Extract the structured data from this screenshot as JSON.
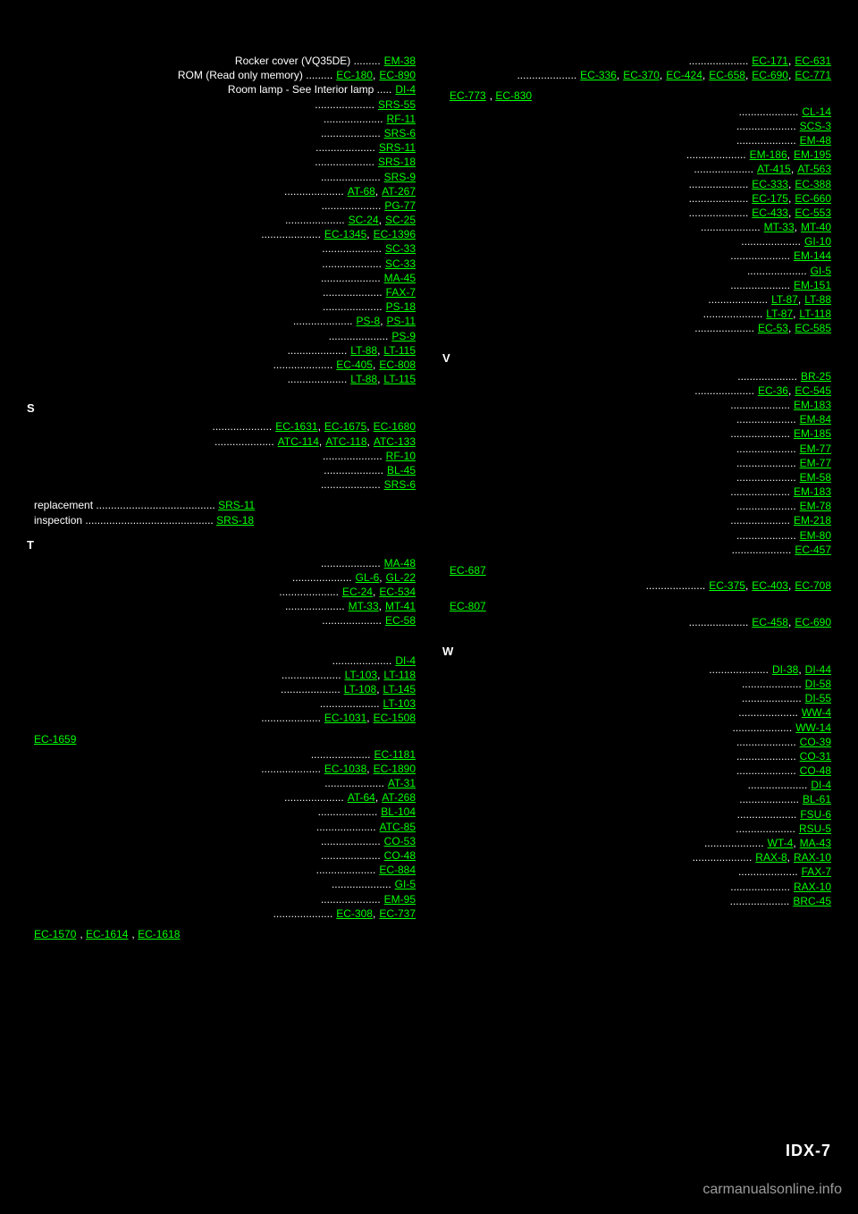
{
  "left": {
    "heading1": "S",
    "sub1_label": "replacement",
    "sub1_links": [
      "SRS-11"
    ],
    "sub2_label": "inspection",
    "sub2_links": [
      "SRS-18"
    ],
    "entries_top": [
      {
        "label": "Rocker cover (VQ35DE)",
        "links": [
          "EM-38"
        ]
      },
      {
        "label": "ROM (Read only memory)",
        "links": [
          "EC-180",
          "EC-890"
        ]
      },
      {
        "label": "Room lamp - See Interior lamp",
        "links": [
          "DI-4"
        ]
      },
      {
        "label": "",
        "links": [
          "SRS-55"
        ]
      },
      {
        "label": "",
        "links": [
          "RF-11"
        ]
      },
      {
        "label": "",
        "links": [
          "SRS-6"
        ]
      },
      {
        "label": "",
        "links": [
          "SRS-11"
        ]
      },
      {
        "label": "",
        "links": [
          "SRS-18"
        ]
      },
      {
        "label": "",
        "links": [
          "SRS-9"
        ]
      },
      {
        "label": "",
        "links": [
          "AT-68",
          "AT-267"
        ]
      },
      {
        "label": "",
        "links": [
          "PG-77"
        ]
      },
      {
        "label": "",
        "links": [
          "SC-24",
          "SC-25"
        ]
      },
      {
        "label": "",
        "links": [
          "EC-1345",
          "EC-1396"
        ]
      },
      {
        "label": "",
        "links": [
          "SC-33"
        ]
      },
      {
        "label": "",
        "links": [
          "SC-33"
        ]
      },
      {
        "label": "",
        "links": [
          "MA-45"
        ]
      },
      {
        "label": "",
        "links": [
          "FAX-7"
        ]
      },
      {
        "label": "",
        "links": [
          "PS-18"
        ]
      },
      {
        "label": "",
        "links": [
          "PS-8",
          "PS-11"
        ]
      },
      {
        "label": "",
        "links": [
          "PS-9"
        ]
      },
      {
        "label": "",
        "links": [
          "LT-88",
          "LT-115"
        ]
      },
      {
        "label": "",
        "links": [
          "EC-405",
          "EC-808"
        ]
      },
      {
        "label": "",
        "links": [
          "LT-88",
          "LT-115"
        ]
      }
    ],
    "sub3_links": [
      "EC-1570",
      "EC-1614",
      "EC-1618"
    ],
    "entries_mid": [
      {
        "label": "",
        "links": [
          "EC-1631",
          "EC-1675",
          "EC-1680"
        ]
      },
      {
        "label": "",
        "links": [
          "ATC-114",
          "ATC-118",
          "ATC-133"
        ]
      },
      {
        "label": "",
        "links": [
          "RF-10"
        ]
      },
      {
        "label": "",
        "links": [
          "BL-45"
        ]
      },
      {
        "label": "",
        "links": [
          "SRS-6"
        ]
      }
    ],
    "entries_t": [
      {
        "label": "",
        "links": [
          "MA-48"
        ]
      },
      {
        "label": "",
        "links": [
          "GL-6",
          "GL-22"
        ]
      },
      {
        "label": "",
        "links": [
          "EC-24",
          "EC-534"
        ]
      },
      {
        "label": "",
        "links": [
          "MT-33",
          "MT-41"
        ]
      },
      {
        "label": "",
        "links": [
          "EC-58"
        ]
      }
    ],
    "heading2": "T",
    "entries_bottom": [
      {
        "label": "",
        "links": [
          "DI-4"
        ]
      },
      {
        "label": "",
        "links": [
          "LT-103",
          "LT-118"
        ]
      },
      {
        "label": "",
        "links": [
          "LT-108",
          "LT-145"
        ]
      },
      {
        "label": "",
        "links": [
          "LT-103"
        ]
      },
      {
        "label": "",
        "links": [
          "EC-1031",
          "EC-1508"
        ]
      }
    ],
    "sub4_links": [
      "EC-1659"
    ],
    "entries_end": [
      {
        "label": "",
        "links": [
          "EC-1181"
        ]
      },
      {
        "label": "",
        "links": [
          "EC-1038",
          "EC-1890"
        ]
      },
      {
        "label": "",
        "links": [
          "AT-31"
        ]
      },
      {
        "label": "",
        "links": [
          "AT-64",
          "AT-268"
        ]
      },
      {
        "label": "",
        "links": [
          "BL-104"
        ]
      },
      {
        "label": "",
        "links": [
          "ATC-85"
        ]
      },
      {
        "label": "",
        "links": [
          "CO-53"
        ]
      },
      {
        "label": "",
        "links": [
          "CO-48"
        ]
      },
      {
        "label": "",
        "links": [
          "EC-884"
        ]
      },
      {
        "label": "",
        "links": [
          "GI-5"
        ]
      },
      {
        "label": "",
        "links": [
          "EM-95"
        ]
      },
      {
        "label": "",
        "links": [
          "EC-308",
          "EC-737"
        ]
      }
    ]
  },
  "right": {
    "entries_top": [
      {
        "label": "",
        "links": [
          "EC-171",
          "EC-631"
        ]
      },
      {
        "label": "",
        "links": [
          "EC-336",
          "EC-370",
          "EC-424",
          "EC-658",
          "EC-690",
          "EC-771"
        ]
      }
    ],
    "sub_links": [
      "EC-773",
      "EC-830"
    ],
    "entries_mid": [
      {
        "label": "",
        "links": [
          "CL-14"
        ]
      },
      {
        "label": "",
        "links": [
          "SCS-3"
        ]
      },
      {
        "label": "",
        "links": [
          "EM-48"
        ]
      },
      {
        "label": "",
        "links": [
          "EM-186",
          "EM-195"
        ]
      },
      {
        "label": "",
        "links": [
          "AT-415",
          "AT-563"
        ]
      },
      {
        "label": "",
        "links": [
          "EC-333",
          "EC-388"
        ]
      },
      {
        "label": "",
        "links": [
          "EC-175",
          "EC-660"
        ]
      },
      {
        "label": "",
        "links": [
          "EC-433",
          "EC-553"
        ]
      },
      {
        "label": "",
        "links": [
          "MT-33",
          "MT-40"
        ]
      },
      {
        "label": "",
        "links": [
          "GI-10"
        ]
      },
      {
        "label": "",
        "links": [
          "EM-144"
        ]
      },
      {
        "label": "",
        "links": [
          "GI-5"
        ]
      },
      {
        "label": "",
        "links": [
          "EM-151"
        ]
      },
      {
        "label": "",
        "links": [
          "LT-87",
          "LT-88"
        ]
      },
      {
        "label": "",
        "links": [
          "LT-87",
          "LT-118"
        ]
      },
      {
        "label": "",
        "links": [
          "EC-53",
          "EC-585"
        ]
      }
    ],
    "heading1": "V",
    "entries_v": [
      {
        "label": "",
        "links": [
          "BR-25"
        ]
      },
      {
        "label": "",
        "links": [
          "EC-36",
          "EC-545"
        ]
      },
      {
        "label": "",
        "links": [
          "EM-183"
        ]
      },
      {
        "label": "",
        "links": [
          "EM-84"
        ]
      },
      {
        "label": "",
        "links": [
          "EM-185"
        ]
      },
      {
        "label": "",
        "links": [
          "EM-77"
        ]
      },
      {
        "label": "",
        "links": [
          "EM-77"
        ]
      },
      {
        "label": "",
        "links": [
          "EM-58"
        ]
      },
      {
        "label": "",
        "links": [
          "EM-183"
        ]
      },
      {
        "label": "",
        "links": [
          "EM-78"
        ]
      },
      {
        "label": "",
        "links": [
          "EM-218"
        ]
      },
      {
        "label": "",
        "links": [
          "EM-80"
        ]
      },
      {
        "label": "",
        "links": [
          "EC-457"
        ]
      }
    ],
    "sub5_links": [
      "EC-687"
    ],
    "entries_v2": [
      {
        "label": "",
        "links": [
          "EC-375",
          "EC-403",
          "EC-708"
        ]
      }
    ],
    "sub6_links": [
      "EC-807"
    ],
    "entries_v3": [
      {
        "label": "",
        "links": [
          "EC-458",
          "EC-690"
        ]
      }
    ],
    "heading2": "W",
    "entries_w": [
      {
        "label": "",
        "links": [
          "DI-38",
          "DI-44"
        ]
      },
      {
        "label": "",
        "links": [
          "DI-58"
        ]
      },
      {
        "label": "",
        "links": [
          "DI-55"
        ]
      },
      {
        "label": "",
        "links": [
          "WW-4"
        ]
      },
      {
        "label": "",
        "links": [
          "WW-14"
        ]
      },
      {
        "label": "",
        "links": [
          "CO-39"
        ]
      },
      {
        "label": "",
        "links": [
          "CO-31"
        ]
      },
      {
        "label": "",
        "links": [
          "CO-48"
        ]
      },
      {
        "label": "",
        "links": [
          "DI-4"
        ]
      },
      {
        "label": "",
        "links": [
          "BL-61"
        ]
      },
      {
        "label": "",
        "links": [
          "FSU-6"
        ]
      },
      {
        "label": "",
        "links": [
          "RSU-5"
        ]
      },
      {
        "label": "",
        "links": [
          "WT-4",
          "MA-43"
        ]
      },
      {
        "label": "",
        "links": [
          "RAX-8",
          "RAX-10"
        ]
      },
      {
        "label": "",
        "links": [
          "FAX-7"
        ]
      },
      {
        "label": "",
        "links": [
          "RAX-10"
        ]
      },
      {
        "label": "",
        "links": [
          "BRC-45"
        ]
      }
    ]
  },
  "page": "IDX-7",
  "watermark": "carmanualsonline.info"
}
